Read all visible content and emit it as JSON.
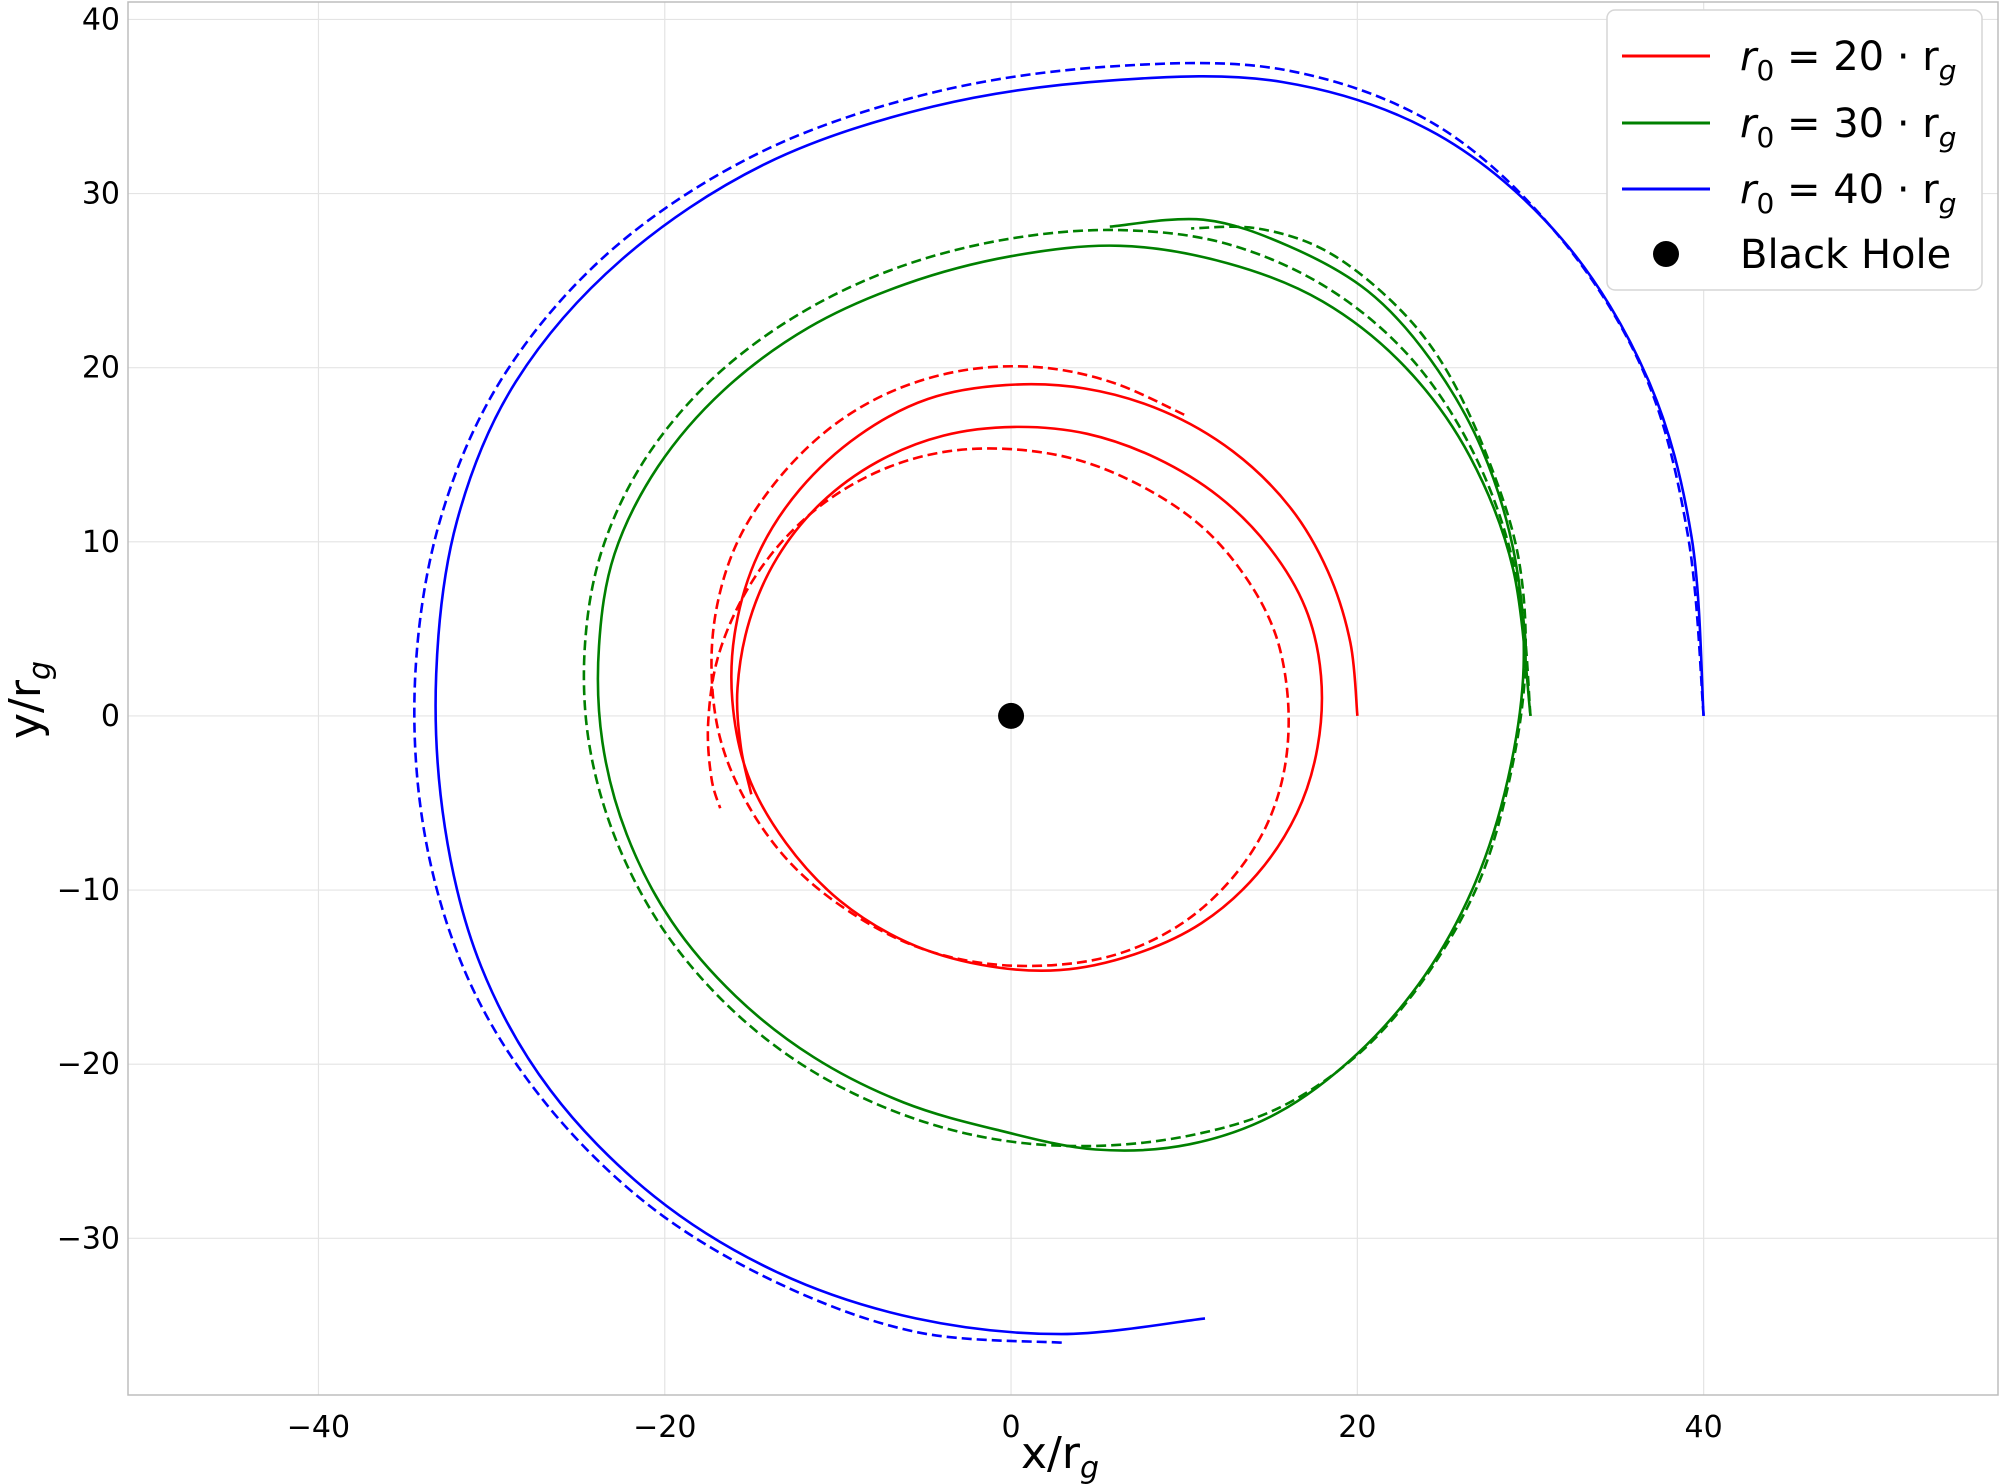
{
  "chart_data": {
    "type": "line",
    "title": "",
    "xlabel": "x/r_g",
    "ylabel": "y/r_g",
    "xlim": [
      -51,
      57
    ],
    "ylim": [
      -39,
      41
    ],
    "xticks": [
      -40,
      -20,
      0,
      20,
      40
    ],
    "yticks": [
      -30,
      -20,
      -10,
      0,
      10,
      20,
      30,
      40
    ],
    "xtick_labels": [
      "−40",
      "−20",
      "0",
      "20",
      "40"
    ],
    "ytick_labels": [
      "−30",
      "−20",
      "−10",
      "0",
      "10",
      "20",
      "30",
      "40"
    ],
    "grid": true,
    "legend_position": "top-right",
    "series": [
      {
        "name": "r₀ = 20 · r_g",
        "color": "#ff0000",
        "style": "solid",
        "points": [
          [
            20.0,
            0.0
          ],
          [
            19.6,
            4.2
          ],
          [
            18.3,
            8.3
          ],
          [
            16.1,
            12.0
          ],
          [
            12.8,
            15.2
          ],
          [
            8.8,
            17.5
          ],
          [
            4.3,
            18.8
          ],
          [
            -0.3,
            19.0
          ],
          [
            -4.8,
            18.2
          ],
          [
            -8.8,
            16.1
          ],
          [
            -12.2,
            13.0
          ],
          [
            -14.6,
            9.3
          ],
          [
            -15.9,
            5.1
          ],
          [
            -16.1,
            0.9
          ],
          [
            -15.2,
            -3.4
          ],
          [
            -13.0,
            -7.3
          ],
          [
            -9.9,
            -10.6
          ],
          [
            -6.0,
            -13.0
          ],
          [
            -1.7,
            -14.3
          ],
          [
            2.8,
            -14.6
          ],
          [
            7.1,
            -13.7
          ],
          [
            11.0,
            -11.9
          ],
          [
            14.2,
            -9.1
          ],
          [
            16.5,
            -5.6
          ],
          [
            17.7,
            -1.8
          ],
          [
            17.9,
            2.3
          ],
          [
            17.0,
            6.2
          ],
          [
            14.9,
            9.7
          ],
          [
            12.0,
            12.6
          ],
          [
            8.4,
            14.8
          ],
          [
            4.4,
            16.2
          ],
          [
            0.2,
            16.6
          ],
          [
            -3.9,
            16.1
          ],
          [
            -7.7,
            14.6
          ],
          [
            -11.0,
            12.2
          ],
          [
            -13.5,
            9.1
          ],
          [
            -15.1,
            5.5
          ],
          [
            -15.8,
            1.6
          ],
          [
            -15.6,
            -1.8
          ],
          [
            -15.0,
            -4.5
          ]
        ]
      },
      {
        "name": "r₀ = 20 · r_g (dashed)",
        "color": "#ff0000",
        "style": "dashed",
        "points": [
          [
            10.0,
            17.3
          ],
          [
            6.0,
            19.1
          ],
          [
            1.9,
            20.0
          ],
          [
            -2.4,
            19.9
          ],
          [
            -6.5,
            18.8
          ],
          [
            -10.1,
            16.8
          ],
          [
            -13.2,
            13.9
          ],
          [
            -15.6,
            10.4
          ],
          [
            -16.9,
            6.7
          ],
          [
            -17.3,
            2.8
          ],
          [
            -16.8,
            -1.3
          ],
          [
            -15.2,
            -5.1
          ],
          [
            -12.7,
            -8.5
          ],
          [
            -9.4,
            -11.2
          ],
          [
            -5.6,
            -13.2
          ],
          [
            -1.6,
            -14.2
          ],
          [
            2.6,
            -14.3
          ],
          [
            6.4,
            -13.6
          ],
          [
            9.9,
            -11.9
          ],
          [
            12.7,
            -9.4
          ],
          [
            14.7,
            -6.4
          ],
          [
            15.8,
            -3.0
          ],
          [
            16.0,
            0.8
          ],
          [
            15.3,
            4.6
          ],
          [
            13.6,
            7.9
          ],
          [
            11.1,
            10.8
          ],
          [
            7.9,
            13.0
          ],
          [
            4.2,
            14.6
          ],
          [
            0.3,
            15.3
          ],
          [
            -3.6,
            15.2
          ],
          [
            -7.3,
            14.2
          ],
          [
            -10.7,
            12.3
          ],
          [
            -13.5,
            9.7
          ],
          [
            -15.6,
            6.6
          ],
          [
            -17.0,
            3.1
          ],
          [
            -17.5,
            -0.6
          ],
          [
            -17.3,
            -3.6
          ],
          [
            -16.8,
            -5.3
          ]
        ]
      },
      {
        "name": "r₀ = 30 · r_g",
        "color": "#008000",
        "style": "solid",
        "points": [
          [
            30.0,
            0.0
          ],
          [
            29.0,
            8.4
          ],
          [
            26.5,
            14.9
          ],
          [
            22.8,
            20.0
          ],
          [
            18.0,
            23.8
          ],
          [
            12.5,
            26.0
          ],
          [
            6.3,
            27.0
          ],
          [
            0.0,
            26.4
          ],
          [
            -6.1,
            24.8
          ],
          [
            -11.7,
            22.3
          ],
          [
            -16.6,
            18.7
          ],
          [
            -20.4,
            14.3
          ],
          [
            -22.9,
            9.3
          ],
          [
            -23.8,
            4.0
          ],
          [
            -23.6,
            -1.5
          ],
          [
            -22.2,
            -6.8
          ],
          [
            -19.6,
            -11.8
          ],
          [
            -15.9,
            -16.1
          ],
          [
            -11.4,
            -19.6
          ],
          [
            -6.2,
            -22.2
          ],
          [
            -0.7,
            -23.8
          ],
          [
            4.9,
            -24.9
          ],
          [
            10.3,
            -24.6
          ],
          [
            15.4,
            -22.8
          ],
          [
            20.0,
            -19.4
          ],
          [
            23.9,
            -14.9
          ],
          [
            26.8,
            -9.6
          ],
          [
            28.7,
            -3.6
          ],
          [
            29.6,
            2.8
          ],
          [
            29.1,
            9.1
          ],
          [
            27.2,
            15.3
          ],
          [
            24.2,
            20.5
          ],
          [
            20.6,
            24.4
          ],
          [
            16.0,
            27.0
          ],
          [
            11.1,
            28.5
          ],
          [
            5.7,
            28.1
          ]
        ]
      },
      {
        "name": "r₀ = 30 · r_g (dashed)",
        "color": "#008000",
        "style": "dashed",
        "points": [
          [
            30.0,
            0.0
          ],
          [
            29.3,
            7.5
          ],
          [
            27.1,
            14.3
          ],
          [
            23.4,
            20.2
          ],
          [
            18.4,
            24.5
          ],
          [
            12.5,
            27.1
          ],
          [
            6.3,
            27.9
          ],
          [
            -0.1,
            27.4
          ],
          [
            -6.4,
            25.8
          ],
          [
            -12.2,
            23.1
          ],
          [
            -17.2,
            19.4
          ],
          [
            -21.1,
            14.8
          ],
          [
            -23.6,
            9.6
          ],
          [
            -24.6,
            4.2
          ],
          [
            -24.4,
            -1.4
          ],
          [
            -22.9,
            -6.9
          ],
          [
            -20.2,
            -12.1
          ],
          [
            -16.4,
            -16.6
          ],
          [
            -11.8,
            -20.2
          ],
          [
            -6.5,
            -22.8
          ],
          [
            -1.0,
            -24.3
          ],
          [
            4.7,
            -24.7
          ],
          [
            10.3,
            -24.1
          ],
          [
            15.5,
            -22.5
          ],
          [
            20.2,
            -19.3
          ],
          [
            24.0,
            -14.9
          ],
          [
            27.0,
            -9.6
          ],
          [
            28.8,
            -3.6
          ],
          [
            29.7,
            2.8
          ],
          [
            29.3,
            9.1
          ],
          [
            27.5,
            14.9
          ],
          [
            25.0,
            20.1
          ],
          [
            22.1,
            23.7
          ],
          [
            18.2,
            26.7
          ],
          [
            14.2,
            28.0
          ],
          [
            10.4,
            28.0
          ]
        ]
      },
      {
        "name": "r₀ = 40 · r_g",
        "color": "#0000ff",
        "style": "solid",
        "points": [
          [
            40.0,
            0.0
          ],
          [
            39.3,
            10.3
          ],
          [
            36.8,
            19.3
          ],
          [
            31.8,
            27.4
          ],
          [
            24.6,
            33.4
          ],
          [
            15.7,
            36.4
          ],
          [
            5.8,
            36.5
          ],
          [
            -4.5,
            35.0
          ],
          [
            -14.2,
            31.7
          ],
          [
            -22.5,
            26.2
          ],
          [
            -28.6,
            19.2
          ],
          [
            -32.0,
            11.2
          ],
          [
            -33.2,
            2.4
          ],
          [
            -32.7,
            -6.4
          ],
          [
            -30.6,
            -14.4
          ],
          [
            -26.6,
            -21.5
          ],
          [
            -20.6,
            -27.6
          ],
          [
            -13.4,
            -32.0
          ],
          [
            -5.5,
            -34.6
          ],
          [
            2.9,
            -35.5
          ],
          [
            11.2,
            -34.6
          ]
        ]
      },
      {
        "name": "r₀ = 40 · r_g (dashed)",
        "color": "#0000ff",
        "style": "dashed",
        "points": [
          [
            40.0,
            0.0
          ],
          [
            39.1,
            10.3
          ],
          [
            36.6,
            19.6
          ],
          [
            31.6,
            27.6
          ],
          [
            24.6,
            33.9
          ],
          [
            15.8,
            37.1
          ],
          [
            5.8,
            37.3
          ],
          [
            -4.5,
            35.8
          ],
          [
            -14.4,
            32.4
          ],
          [
            -22.9,
            26.9
          ],
          [
            -29.2,
            19.7
          ],
          [
            -32.9,
            11.5
          ],
          [
            -34.4,
            2.5
          ],
          [
            -33.9,
            -6.6
          ],
          [
            -31.4,
            -15.0
          ],
          [
            -27.0,
            -22.1
          ],
          [
            -20.8,
            -28.2
          ],
          [
            -13.4,
            -32.6
          ],
          [
            -5.4,
            -35.4
          ],
          [
            3.1,
            -36.0
          ]
        ]
      }
    ],
    "legend": [
      {
        "label_base": "r",
        "label_sub0": "0",
        "label_mid": " = 20 · r",
        "label_sub1": "g",
        "color": "#ff0000",
        "marker": "line"
      },
      {
        "label_base": "r",
        "label_sub0": "0",
        "label_mid": " = 30 · r",
        "label_sub1": "g",
        "color": "#008000",
        "marker": "line"
      },
      {
        "label_base": "r",
        "label_sub0": "0",
        "label_mid": " = 40 · r",
        "label_sub1": "g",
        "color": "#0000ff",
        "marker": "line"
      },
      {
        "label_text": "Black Hole",
        "color": "#000000",
        "marker": "dot"
      }
    ],
    "black_hole": {
      "x": 0,
      "y": 0,
      "label": "Black Hole"
    }
  }
}
